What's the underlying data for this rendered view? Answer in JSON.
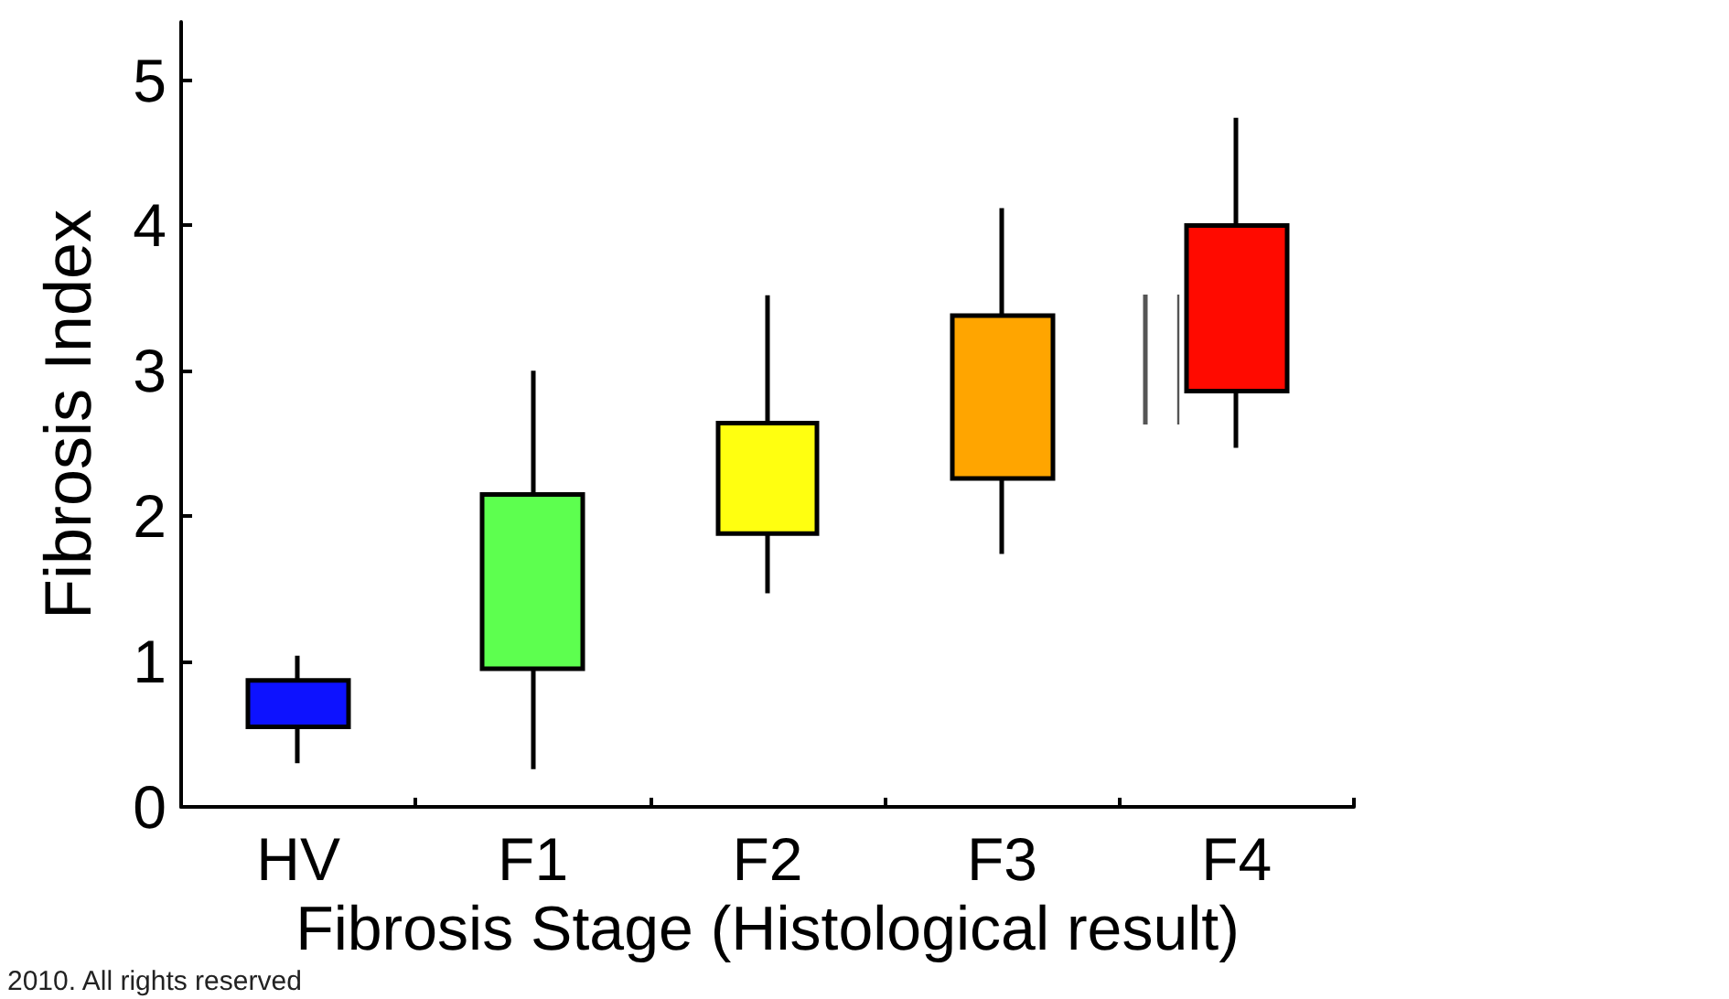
{
  "chart_data": {
    "type": "candlestick",
    "xlabel": "Fibrosis Stage (Histological result)",
    "ylabel": "Fibrosis Index",
    "categories": [
      "HV",
      "F1",
      "F2",
      "F3",
      "F4"
    ],
    "ohlc": [
      [
        0.55,
        1.04,
        0.3,
        0.87
      ],
      [
        0.95,
        3.0,
        0.26,
        2.15
      ],
      [
        1.88,
        3.52,
        1.47,
        2.64
      ],
      [
        2.26,
        4.12,
        1.74,
        3.38
      ],
      [
        2.86,
        4.74,
        2.47,
        4.0
      ]
    ],
    "colors": [
      "#0d12ff",
      "#5dff4f",
      "#ffff10",
      "#ffa500",
      "#ff0a00"
    ],
    "ylim": [
      0,
      5.4
    ],
    "yticks": [
      0,
      1,
      2,
      3,
      4,
      5
    ],
    "annotations": [
      "2010. All rights reserved"
    ]
  }
}
